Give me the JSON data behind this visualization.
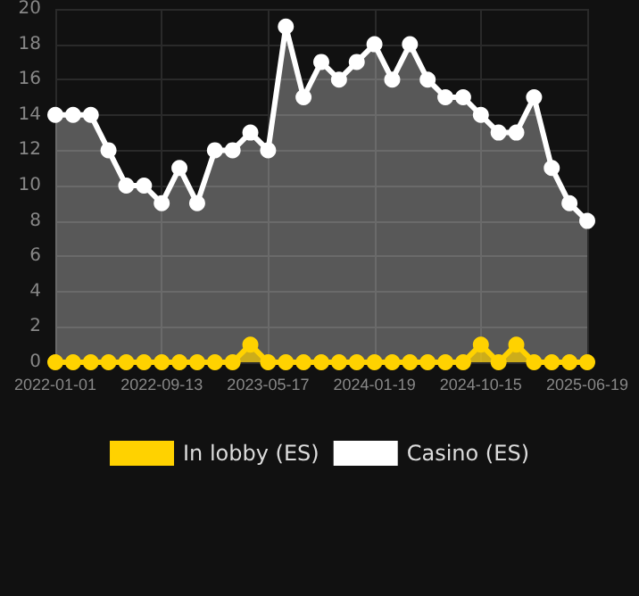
{
  "chart_data": {
    "type": "area",
    "categories": [
      "2022-01-01",
      null,
      null,
      null,
      null,
      null,
      "2022-09-13",
      null,
      null,
      null,
      null,
      null,
      "2023-05-17",
      null,
      null,
      null,
      null,
      null,
      "2024-01-19",
      null,
      null,
      null,
      null,
      null,
      "2024-10-15",
      null,
      null,
      null,
      null,
      null,
      "2025-06-19"
    ],
    "series": [
      {
        "name": "In lobby (ES)",
        "color": "#ffd200",
        "values": [
          0,
          0,
          0,
          0,
          0,
          0,
          0,
          0,
          0,
          0,
          0,
          1,
          0,
          0,
          0,
          0,
          0,
          0,
          0,
          0,
          0,
          0,
          0,
          0,
          1,
          0,
          1,
          0,
          0,
          0,
          0
        ]
      },
      {
        "name": "Casino (ES)",
        "color": "#ffffff",
        "values": [
          14,
          14,
          14,
          12,
          10,
          10,
          9,
          11,
          9,
          12,
          12,
          13,
          12,
          19,
          15,
          17,
          16,
          17,
          18,
          16,
          18,
          16,
          15,
          15,
          14,
          13,
          13,
          15,
          11,
          9,
          8
        ]
      }
    ],
    "ylim": [
      0,
      20
    ],
    "yticks": [
      0,
      2,
      4,
      6,
      8,
      10,
      12,
      14,
      16,
      18,
      20
    ],
    "grid": true,
    "legend": "bottom",
    "marker": "circle"
  }
}
